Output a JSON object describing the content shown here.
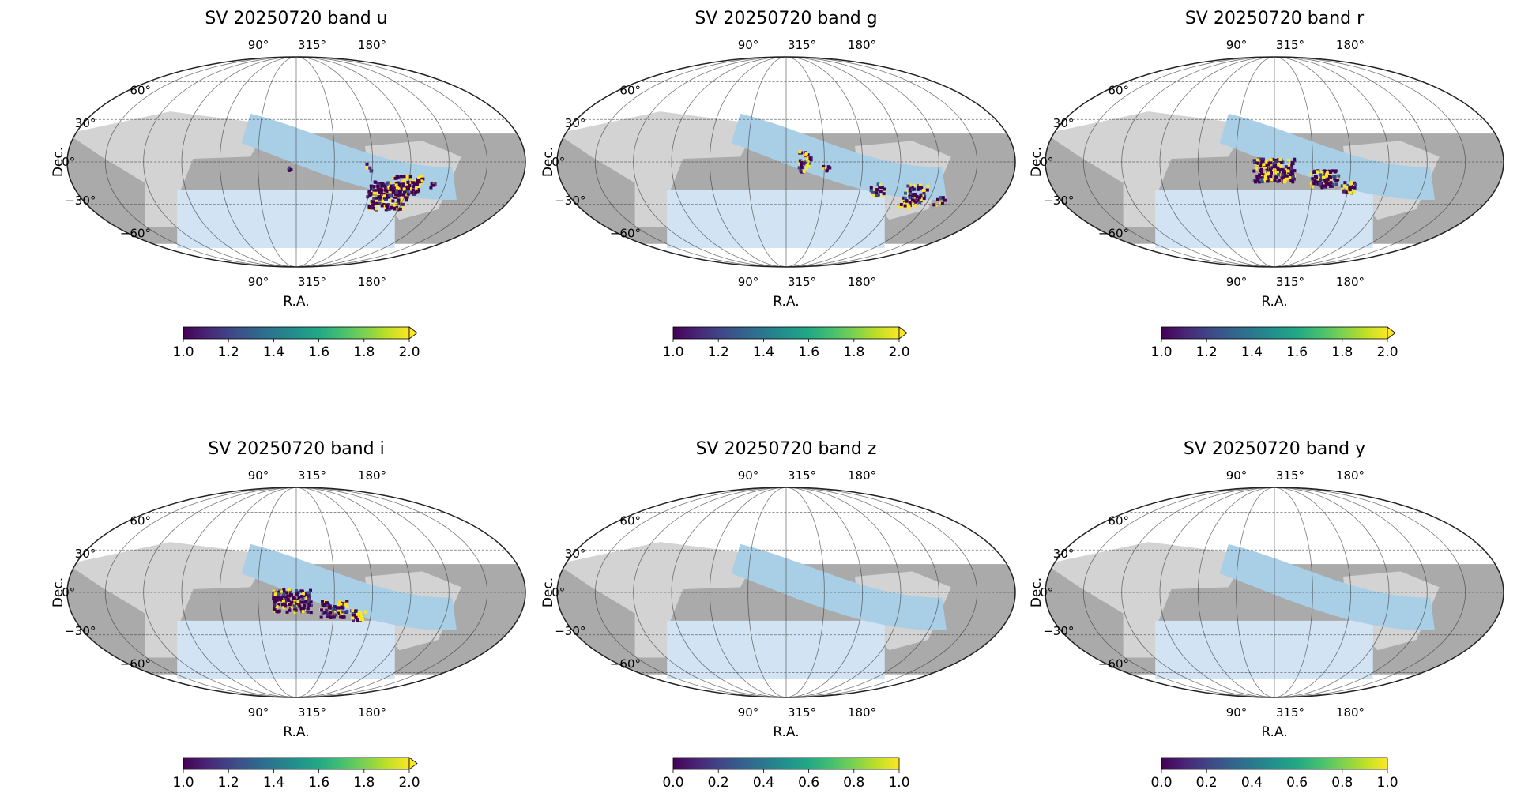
{
  "figure": {
    "projection": "mollweide",
    "background_regions": [
      "light-gray",
      "dark-gray"
    ],
    "footprint_colors": {
      "band_region": "#a9cfe6",
      "south_region": "#d2e4f4",
      "light_region": "#d3d3d3",
      "dark_region": "#aaaaaa"
    },
    "colormap": "viridis",
    "panel_order_note": "3 columns x 2 rows"
  },
  "chart_data": [
    {
      "type": "heatmap",
      "title": "SV 20250720 band u",
      "xlabel": "R.A.",
      "ylabel": "Dec.",
      "ra_ticks": [
        "90°",
        "315°",
        "180°"
      ],
      "dec_ticks": [
        "60°",
        "30°",
        "0°",
        "−30°",
        "−60°"
      ],
      "colorbar": {
        "min": 1.0,
        "max": 2.0,
        "ticks": [
          "1.0",
          "1.2",
          "1.4",
          "1.6",
          "1.8",
          "2.0"
        ],
        "extend": "max"
      },
      "clusters": [
        {
          "ra": 237,
          "dec": -24,
          "w": 30,
          "h": 20,
          "density": 0.9
        },
        {
          "ra": 226,
          "dec": -17,
          "w": 24,
          "h": 14,
          "density": 0.8
        },
        {
          "ra": 250,
          "dec": -20,
          "w": 12,
          "h": 12,
          "density": 0.7
        },
        {
          "ra": 258,
          "dec": -4,
          "w": 5,
          "h": 5,
          "density": 0.6
        },
        {
          "ra": 205,
          "dec": -16,
          "w": 6,
          "h": 4,
          "density": 0.8
        },
        {
          "ra": 320,
          "dec": -5,
          "w": 2,
          "h": 2,
          "density": 1.0
        }
      ]
    },
    {
      "type": "heatmap",
      "title": "SV 20250720 band g",
      "xlabel": "R.A.",
      "ylabel": "Dec.",
      "ra_ticks": [
        "90°",
        "315°",
        "180°"
      ],
      "dec_ticks": [
        "60°",
        "30°",
        "0°",
        "−30°",
        "−60°"
      ],
      "colorbar": {
        "min": 1.0,
        "max": 2.0,
        "ticks": [
          "1.0",
          "1.2",
          "1.4",
          "1.6",
          "1.8",
          "2.0"
        ],
        "extend": "max"
      },
      "clusters": [
        {
          "ra": 300,
          "dec": 0,
          "w": 10,
          "h": 14,
          "density": 0.7
        },
        {
          "ra": 283,
          "dec": -4,
          "w": 6,
          "h": 5,
          "density": 0.6
        },
        {
          "ra": 240,
          "dec": -20,
          "w": 12,
          "h": 9,
          "density": 0.7
        },
        {
          "ra": 208,
          "dec": -24,
          "w": 18,
          "h": 16,
          "density": 0.9
        },
        {
          "ra": 185,
          "dec": -28,
          "w": 8,
          "h": 6,
          "density": 0.7
        }
      ]
    },
    {
      "type": "heatmap",
      "title": "SV 20250720 band r",
      "xlabel": "R.A.",
      "ylabel": "Dec.",
      "ra_ticks": [
        "90°",
        "315°",
        "180°"
      ],
      "dec_ticks": [
        "60°",
        "30°",
        "0°",
        "−30°",
        "−60°"
      ],
      "colorbar": {
        "min": 1.0,
        "max": 2.0,
        "ticks": [
          "1.0",
          "1.2",
          "1.4",
          "1.6",
          "1.8",
          "2.0"
        ],
        "extend": "max"
      },
      "clusters": [
        {
          "ra": 315,
          "dec": -6,
          "w": 32,
          "h": 16,
          "density": 0.95
        },
        {
          "ra": 275,
          "dec": -12,
          "w": 22,
          "h": 12,
          "density": 0.95
        },
        {
          "ra": 255,
          "dec": -18,
          "w": 12,
          "h": 8,
          "density": 0.9
        }
      ]
    },
    {
      "type": "heatmap",
      "title": "SV 20250720 band i",
      "xlabel": "R.A.",
      "ylabel": "Dec.",
      "ra_ticks": [
        "90°",
        "315°",
        "180°"
      ],
      "dec_ticks": [
        "60°",
        "30°",
        "0°",
        "−30°",
        "−60°"
      ],
      "colorbar": {
        "min": 1.0,
        "max": 2.0,
        "ticks": [
          "1.0",
          "1.2",
          "1.4",
          "1.6",
          "1.8",
          "2.0"
        ],
        "extend": "max"
      },
      "clusters": [
        {
          "ra": 318,
          "dec": -6,
          "w": 30,
          "h": 16,
          "density": 0.95
        },
        {
          "ra": 285,
          "dec": -12,
          "w": 22,
          "h": 12,
          "density": 0.95
        },
        {
          "ra": 265,
          "dec": -16,
          "w": 12,
          "h": 8,
          "density": 0.9
        }
      ]
    },
    {
      "type": "heatmap",
      "title": "SV 20250720 band z",
      "xlabel": "R.A.",
      "ylabel": "Dec.",
      "ra_ticks": [
        "90°",
        "315°",
        "180°"
      ],
      "dec_ticks": [
        "60°",
        "30°",
        "0°",
        "−30°",
        "−60°"
      ],
      "colorbar": {
        "min": 0.0,
        "max": 1.0,
        "ticks": [
          "0.0",
          "0.2",
          "0.4",
          "0.6",
          "0.8",
          "1.0"
        ],
        "extend": "neither"
      },
      "clusters": []
    },
    {
      "type": "heatmap",
      "title": "SV 20250720 band y",
      "xlabel": "R.A.",
      "ylabel": "Dec.",
      "ra_ticks": [
        "90°",
        "315°",
        "180°"
      ],
      "dec_ticks": [
        "60°",
        "30°",
        "0°",
        "−30°",
        "−60°"
      ],
      "colorbar": {
        "min": 0.0,
        "max": 1.0,
        "ticks": [
          "0.0",
          "0.2",
          "0.4",
          "0.6",
          "0.8",
          "1.0"
        ],
        "extend": "neither"
      },
      "clusters": []
    }
  ]
}
